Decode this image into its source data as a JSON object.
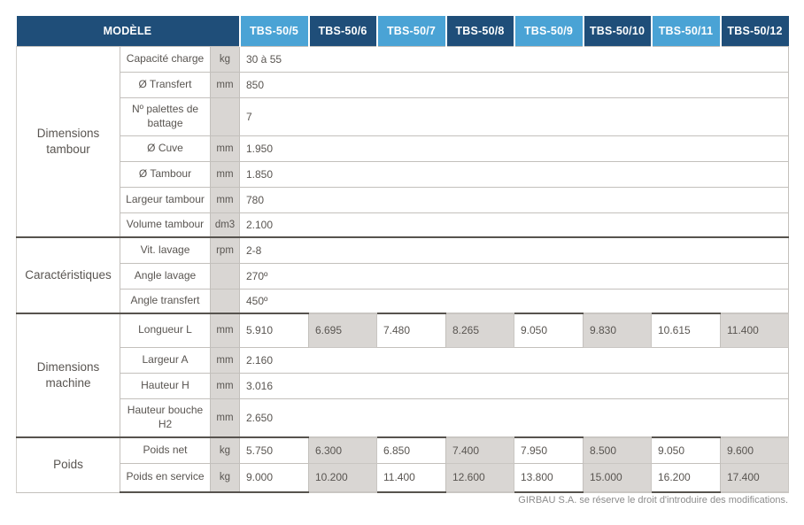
{
  "header": {
    "model_label": "MODÈLE",
    "models": [
      "TBS-50/5",
      "TBS-50/6",
      "TBS-50/7",
      "TBS-50/8",
      "TBS-50/9",
      "TBS-50/10",
      "TBS-50/11",
      "TBS-50/12"
    ]
  },
  "groups": [
    {
      "label": "Dimensions tambour",
      "rows": [
        {
          "label": "Capacité charge",
          "unit": "kg",
          "value": "30 à 55"
        },
        {
          "label": "Ø Transfert",
          "unit": "mm",
          "value": "850"
        },
        {
          "label": "Nº palettes de battage",
          "unit": "",
          "value": "7"
        },
        {
          "label": "Ø Cuve",
          "unit": "mm",
          "value": "1.950"
        },
        {
          "label": "Ø Tambour",
          "unit": "mm",
          "value": "1.850"
        },
        {
          "label": "Largeur tambour",
          "unit": "mm",
          "value": "780"
        },
        {
          "label": "Volume tambour",
          "unit": "dm3",
          "value": "2.100"
        }
      ]
    },
    {
      "label": "Caractéristiques",
      "rows": [
        {
          "label": "Vit. lavage",
          "unit": "rpm",
          "value": "2-8"
        },
        {
          "label": "Angle lavage",
          "unit": "",
          "value": "270º"
        },
        {
          "label": "Angle transfert",
          "unit": "",
          "value": "450º"
        }
      ]
    },
    {
      "label": "Dimensions machine",
      "rows": [
        {
          "label": "Longueur  L",
          "unit": "mm",
          "values": [
            "5.910",
            "6.695",
            "7.480",
            "8.265",
            "9.050",
            "9.830",
            "10.615",
            "11.400"
          ]
        },
        {
          "label": "Largeur A",
          "unit": "mm",
          "value": "2.160"
        },
        {
          "label": "Hauteur  H",
          "unit": "mm",
          "value": "3.016"
        },
        {
          "label": "Hauteur bouche H2",
          "unit": "mm",
          "value": "2.650"
        }
      ]
    },
    {
      "label": "Poids",
      "rows": [
        {
          "label": "Poids net",
          "unit": "kg",
          "values": [
            "5.750",
            "6.300",
            "6.850",
            "7.400",
            "7.950",
            "8.500",
            "9.050",
            "9.600"
          ]
        },
        {
          "label": "Poids en service",
          "unit": "kg",
          "values": [
            "9.000",
            "10.200",
            "11.400",
            "12.600",
            "13.800",
            "15.000",
            "16.200",
            "17.400"
          ]
        }
      ]
    }
  ],
  "footer": {
    "note": "GIRBAU S.A. se réserve le droit d'introduire des modifications."
  },
  "colors": {
    "header_navy": "#1f4e79",
    "header_light_blue": "#4aa3d5",
    "cell_gray": "#d9d6d3",
    "grid_line": "#c3c0bc",
    "group_divider": "#57534e",
    "text": "#595551"
  }
}
